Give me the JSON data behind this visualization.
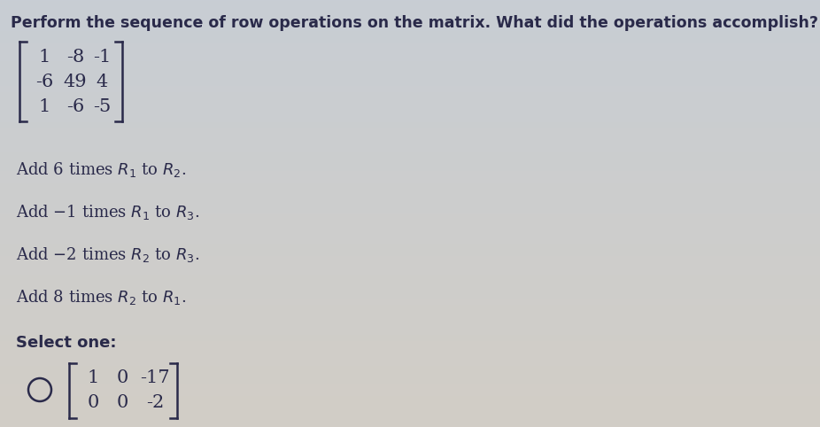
{
  "bg_color": "#cccac4",
  "bg_gradient_top": "#c8cdd4",
  "bg_gradient_bottom": "#ccc8c0",
  "title": "Perform the sequence of row operations on the matrix. What did the operations accomplish?",
  "title_fontsize": 12.5,
  "title_color": "#2a2a4a",
  "matrix_rows": [
    [
      "1",
      "-8",
      "-1"
    ],
    [
      "-6",
      "49",
      "4"
    ],
    [
      "1",
      "-6",
      "-5"
    ]
  ],
  "matrix_color": "#2a2a4a",
  "matrix_fontsize": 15,
  "ops": [
    [
      "Add 6 times ",
      "R_1",
      " to ",
      "R_2",
      "."
    ],
    [
      "Add −1 times ",
      "R_1",
      " to ",
      "R_3",
      "."
    ],
    [
      "Add −2 times ",
      "R_2",
      " to ",
      "R_3",
      "."
    ],
    [
      "Add 8 times ",
      "R_2",
      " to ",
      "R_1",
      "."
    ]
  ],
  "ops_fontsize": 13,
  "ops_color": "#2a2a4a",
  "select_text": "Select one:",
  "select_fontsize": 13,
  "result_rows": [
    [
      "1",
      "0",
      "-17"
    ],
    [
      "0",
      "0",
      "-2"
    ]
  ],
  "result_fontsize": 15,
  "result_color": "#2a2a4a",
  "circle_color": "#2a2a4a"
}
